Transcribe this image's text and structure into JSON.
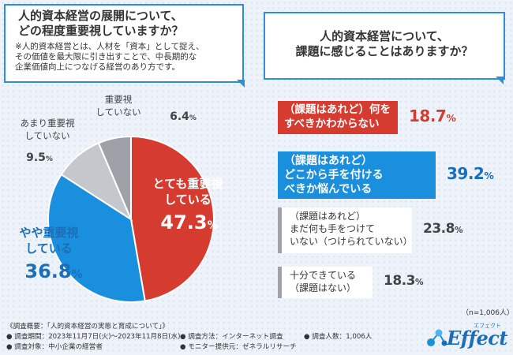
{
  "left_question": {
    "title_lines": [
      "人的資本経営の展開について、",
      "どの程度重要視していますか？"
    ],
    "note_lines": [
      "※人的資本経営とは、人材を「資本」として捉え、",
      "その価値を最大限に引き出すことで、中長期的な",
      "企業価値向上につなげる経営のあり方です。"
    ]
  },
  "right_question": {
    "title_lines": [
      "人的資本経営について、",
      "課題に感じることはありますか？"
    ]
  },
  "chart_data": [
    {
      "type": "pie",
      "title": "人的資本経営の展開について、どの程度重要視していますか？",
      "slices": [
        {
          "label_lines": [
            "とても重要視",
            "している"
          ],
          "value": 47.3,
          "value_text": "47.3",
          "color": "#d63b30"
        },
        {
          "label_lines": [
            "やや重要視",
            "している"
          ],
          "value": 36.8,
          "value_text": "36.8",
          "color": "#1a8fde"
        },
        {
          "label_lines": [
            "あまり重要視",
            "していない"
          ],
          "value": 9.5,
          "value_text": "9.5",
          "color": "#c4c7cc"
        },
        {
          "label_lines": [
            "重要視",
            "していない"
          ],
          "value": 6.4,
          "value_text": "6.4",
          "color": "#9ea2a8"
        }
      ]
    },
    {
      "type": "bar",
      "title": "人的資本経営について、課題に感じることはありますか？",
      "items": [
        {
          "label_lines": [
            "（課題はあれど）何を",
            "すべきかわからない"
          ],
          "value": 18.7,
          "value_text": "18.7",
          "color": "#d63b30",
          "text_color": "#d63b30"
        },
        {
          "label_lines": [
            "（課題はあれど）",
            "どこから手を付ける",
            "べきか悩んでいる"
          ],
          "value": 39.2,
          "value_text": "39.2",
          "color": "#1a8fde",
          "text_color": "#1a6fb8"
        },
        {
          "label_lines": [
            "（課題はあれど）",
            "まだ何も手をつけて",
            "いない（つけられていない）"
          ],
          "value": 23.8,
          "value_text": "23.8",
          "color": "#9ea2a8",
          "text_color": "#444444"
        },
        {
          "label_lines": [
            "十分できている",
            "（課題はない）"
          ],
          "value": 18.3,
          "value_text": "18.3",
          "color": "#9ea2a8",
          "text_color": "#444444"
        }
      ],
      "percent_unit": "%"
    }
  ],
  "sample_size": "（n=1,006人）",
  "footer": {
    "overview": "《調査概要：「人的資本経営の実態と育成について」》",
    "period": "● 調査期間：2023年11月7日(火)〜2023年11月8日(水)",
    "method": "● 調査方法：インターネット調査",
    "people": "● 調査人数：1,006人",
    "target": "● 調査対象：中小企業の経営者",
    "provider": "● モニター提供元：ゼネラルリサーチ"
  },
  "logo": {
    "name": "Effect",
    "kana": "エフェクト"
  }
}
